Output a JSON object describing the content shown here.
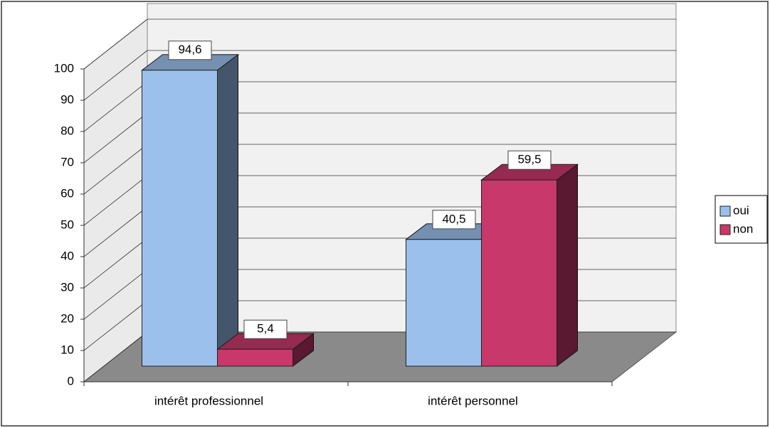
{
  "chart_data": {
    "type": "bar3d",
    "categories": [
      "intérêt professionnel",
      "intérêt personnel"
    ],
    "series": [
      {
        "name": "oui",
        "color": "#9cc0ec",
        "values": [
          94.6,
          40.5
        ],
        "value_labels": [
          "94,6",
          "40,5"
        ]
      },
      {
        "name": "non",
        "color": "#c8386a",
        "values": [
          5.4,
          59.5
        ],
        "value_labels": [
          "5,4",
          "59,5"
        ]
      }
    ],
    "ylim": [
      0,
      100
    ],
    "yticks": [
      0,
      10,
      20,
      30,
      40,
      50,
      60,
      70,
      80,
      90,
      100
    ],
    "grid": true,
    "legend": "right"
  }
}
